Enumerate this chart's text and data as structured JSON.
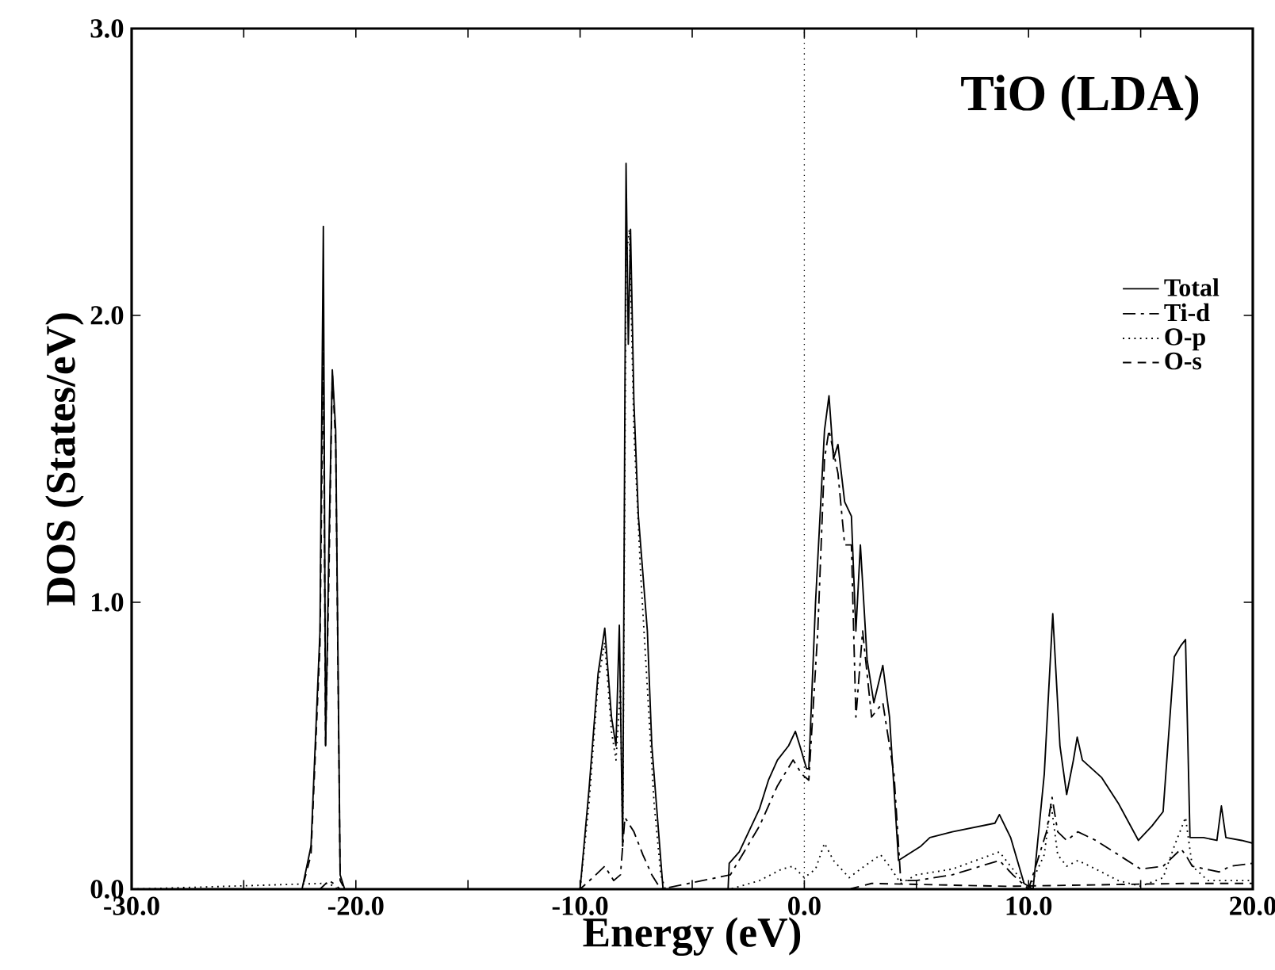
{
  "chart_data": {
    "type": "line",
    "title": "TiO (LDA)",
    "xlabel": "Energy (eV)",
    "ylabel": "DOS (States/eV)",
    "xlim": [
      -30,
      20
    ],
    "ylim": [
      0,
      3
    ],
    "xticks": [
      {
        "value": -30,
        "label": "-30.0"
      },
      {
        "value": -25,
        "label": null
      },
      {
        "value": -20,
        "label": "-20.0"
      },
      {
        "value": -15,
        "label": null
      },
      {
        "value": -10,
        "label": "-10.0"
      },
      {
        "value": -5,
        "label": null
      },
      {
        "value": 0,
        "label": "0.0"
      },
      {
        "value": 5,
        "label": null
      },
      {
        "value": 10,
        "label": "10.0"
      },
      {
        "value": 15,
        "label": null
      },
      {
        "value": 20,
        "label": "20.0"
      }
    ],
    "yticks": [
      {
        "value": 0,
        "label": "0.0"
      },
      {
        "value": 1,
        "label": "1.0"
      },
      {
        "value": 2,
        "label": "2.0"
      },
      {
        "value": 3,
        "label": "3.0"
      }
    ],
    "legend": "right",
    "grid": false,
    "ref_lines": [
      {
        "axis": "x",
        "value": 0,
        "line_style": "dotted"
      }
    ],
    "series": [
      {
        "name": "Total",
        "color": "#000000",
        "line_style": "solid",
        "x": [
          -30,
          -22.4,
          -22.0,
          -21.6,
          -21.45,
          -21.35,
          -21.2,
          -21.05,
          -20.9,
          -20.7,
          -20.5,
          -10.0,
          -9.6,
          -9.2,
          -8.9,
          -8.6,
          -8.4,
          -8.25,
          -8.1,
          -7.95,
          -7.85,
          -7.75,
          -7.6,
          -7.4,
          -7.2,
          -7.0,
          -6.8,
          -6.5,
          -6.3,
          -3.4,
          -3.35,
          -2.9,
          -2.0,
          -1.6,
          -1.2,
          -0.7,
          -0.4,
          -0.2,
          0.1,
          0.2,
          0.5,
          0.9,
          1.1,
          1.3,
          1.5,
          1.8,
          2.1,
          2.3,
          2.5,
          2.8,
          3.1,
          3.5,
          3.8,
          4.2,
          4.6,
          5.2,
          5.6,
          6.6,
          8.5,
          8.7,
          9.2,
          9.8,
          10.2,
          10.7,
          11.08,
          11.4,
          11.7,
          12.0,
          12.17,
          12.4,
          13.25,
          14.0,
          14.9,
          15.5,
          16.0,
          16.5,
          16.8,
          17.0,
          17.2,
          17.8,
          18.4,
          18.6,
          18.8,
          19.5,
          20
        ],
        "values": [
          0,
          0,
          0.15,
          0.9,
          2.31,
          0.5,
          1.2,
          1.81,
          1.6,
          0.05,
          0,
          0,
          0.35,
          0.75,
          0.91,
          0.6,
          0.5,
          0.92,
          0.15,
          2.53,
          1.9,
          2.3,
          1.7,
          1.3,
          1.1,
          0.9,
          0.5,
          0.2,
          0,
          0,
          0.09,
          0.13,
          0.28,
          0.38,
          0.45,
          0.5,
          0.55,
          0.5,
          0.42,
          0.42,
          1.0,
          1.6,
          1.72,
          1.5,
          1.55,
          1.35,
          1.3,
          0.9,
          1.2,
          0.8,
          0.65,
          0.78,
          0.6,
          0.1,
          0.12,
          0.15,
          0.18,
          0.2,
          0.23,
          0.26,
          0.18,
          0.02,
          0,
          0.4,
          0.96,
          0.5,
          0.33,
          0.45,
          0.53,
          0.45,
          0.39,
          0.3,
          0.17,
          0.22,
          0.27,
          0.81,
          0.85,
          0.87,
          0.18,
          0.18,
          0.17,
          0.29,
          0.18,
          0.17,
          0.16
        ]
      },
      {
        "name": "Ti-d",
        "color": "#000000",
        "line_style": "dashdot",
        "x": [
          -30,
          -21.6,
          -21.2,
          -21.0,
          -20.7,
          -10,
          -9.3,
          -8.9,
          -8.5,
          -8.2,
          -8.0,
          -7.6,
          -7.2,
          -6.8,
          -6.4,
          -3.3,
          -2.0,
          -1.2,
          -0.5,
          -0.1,
          0.2,
          0.6,
          0.9,
          1.1,
          1.5,
          1.8,
          2.1,
          2.3,
          2.6,
          3.0,
          3.5,
          4.0,
          4.3,
          5.0,
          6.6,
          8.7,
          9.3,
          10.0,
          10.8,
          11.05,
          11.3,
          11.7,
          12.2,
          13.0,
          14.0,
          15.0,
          16.0,
          16.8,
          17.0,
          17.3,
          18.5,
          19.0,
          20
        ],
        "values": [
          0,
          0,
          0.03,
          0.02,
          0,
          0,
          0.05,
          0.08,
          0.03,
          0.05,
          0.25,
          0.2,
          0.12,
          0.05,
          0,
          0.05,
          0.22,
          0.36,
          0.45,
          0.4,
          0.38,
          0.9,
          1.5,
          1.6,
          1.45,
          1.2,
          1.2,
          0.6,
          0.9,
          0.6,
          0.65,
          0.4,
          0.03,
          0.03,
          0.05,
          0.1,
          0.05,
          0,
          0.2,
          0.32,
          0.2,
          0.17,
          0.2,
          0.17,
          0.12,
          0.07,
          0.08,
          0.14,
          0.12,
          0.08,
          0.06,
          0.08,
          0.09
        ]
      },
      {
        "name": "O-p",
        "color": "#000000",
        "line_style": "dotted",
        "x": [
          -30,
          -21.5,
          -21.2,
          -20.8,
          -10,
          -9.6,
          -9.2,
          -8.9,
          -8.6,
          -8.4,
          -8.2,
          -8.1,
          -7.95,
          -7.8,
          -7.6,
          -7.3,
          -7.0,
          -6.7,
          -6.4,
          -6.2,
          -3.3,
          -2.0,
          -1.0,
          -0.5,
          0,
          0.5,
          0.9,
          1.3,
          2.0,
          2.5,
          3.4,
          3.8,
          4.3,
          5.0,
          6.6,
          8.7,
          9.5,
          10.0,
          10.7,
          11.0,
          11.3,
          11.7,
          12.2,
          13.0,
          14.0,
          15.0,
          16.0,
          16.5,
          17.0,
          17.3,
          18.0,
          20
        ],
        "values": [
          0,
          0.02,
          0.02,
          0,
          0,
          0.3,
          0.72,
          0.86,
          0.55,
          0.45,
          0.7,
          0.15,
          2.2,
          2.3,
          1.6,
          1.1,
          0.7,
          0.3,
          0.05,
          0,
          0,
          0.03,
          0.07,
          0.08,
          0.04,
          0.07,
          0.16,
          0.1,
          0.04,
          0.07,
          0.12,
          0.08,
          0.02,
          0.05,
          0.07,
          0.13,
          0.05,
          0,
          0.12,
          0.3,
          0.12,
          0.08,
          0.1,
          0.07,
          0.03,
          0.01,
          0.04,
          0.15,
          0.25,
          0.08,
          0.03,
          0.03
        ]
      },
      {
        "name": "O-s",
        "color": "#000000",
        "line_style": "dashed",
        "x": [
          -30,
          -22.4,
          -22.0,
          -21.6,
          -21.45,
          -21.35,
          -21.2,
          -21.05,
          -20.9,
          -20.7,
          -20.5,
          2.0,
          3.0,
          9.0,
          17.0,
          20
        ],
        "values": [
          0,
          0,
          0.12,
          0.85,
          1.9,
          0.5,
          1.1,
          1.8,
          1.55,
          0.03,
          0,
          0,
          0.02,
          0.01,
          0.02,
          0.02
        ]
      }
    ]
  }
}
